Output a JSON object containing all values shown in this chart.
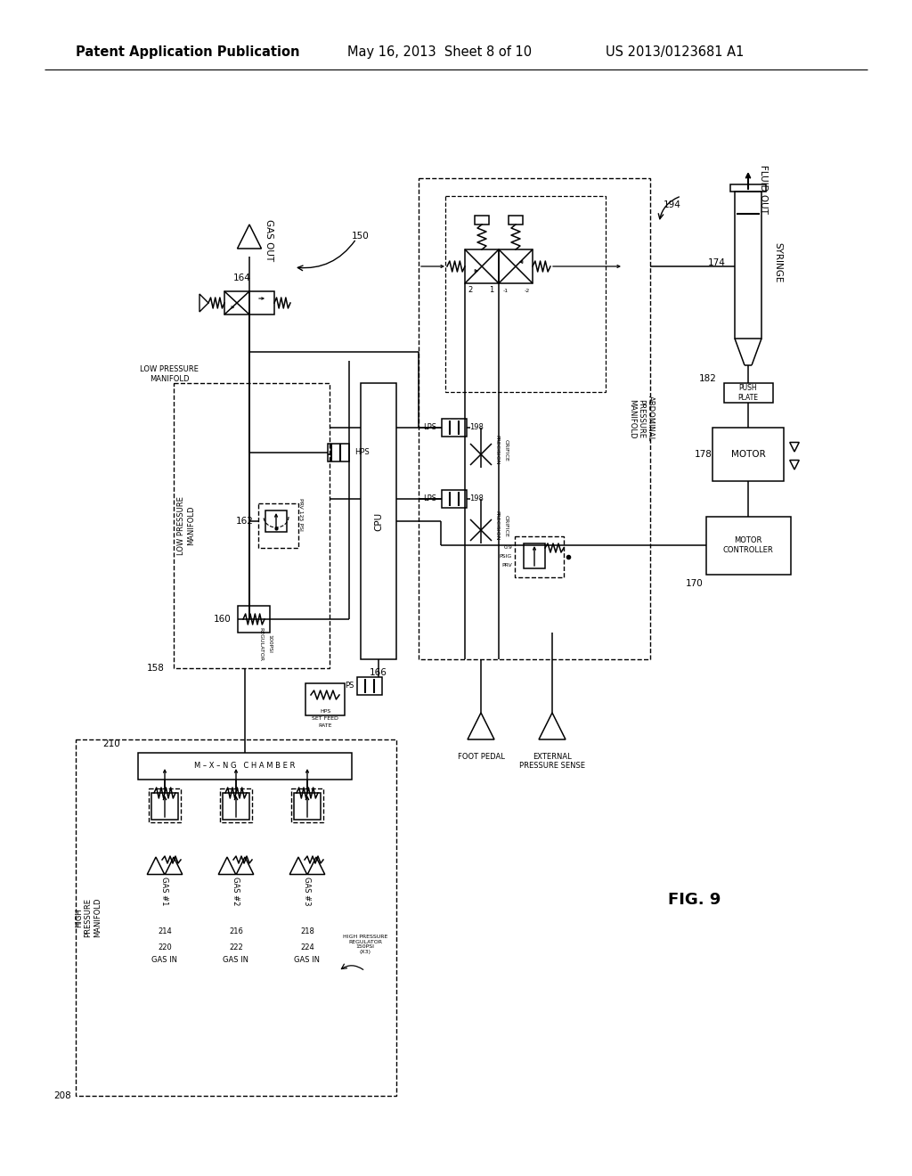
{
  "bg_color": "#ffffff",
  "header_text1": "Patent Application Publication",
  "header_text2": "May 16, 2013  Sheet 8 of 10",
  "header_text3": "US 2013/0123681 A1",
  "fig_label": "FIG. 9",
  "title_fontsize": 10.5,
  "label_fontsize": 7.5,
  "small_fontsize": 6.0,
  "tiny_fontsize": 5.5
}
